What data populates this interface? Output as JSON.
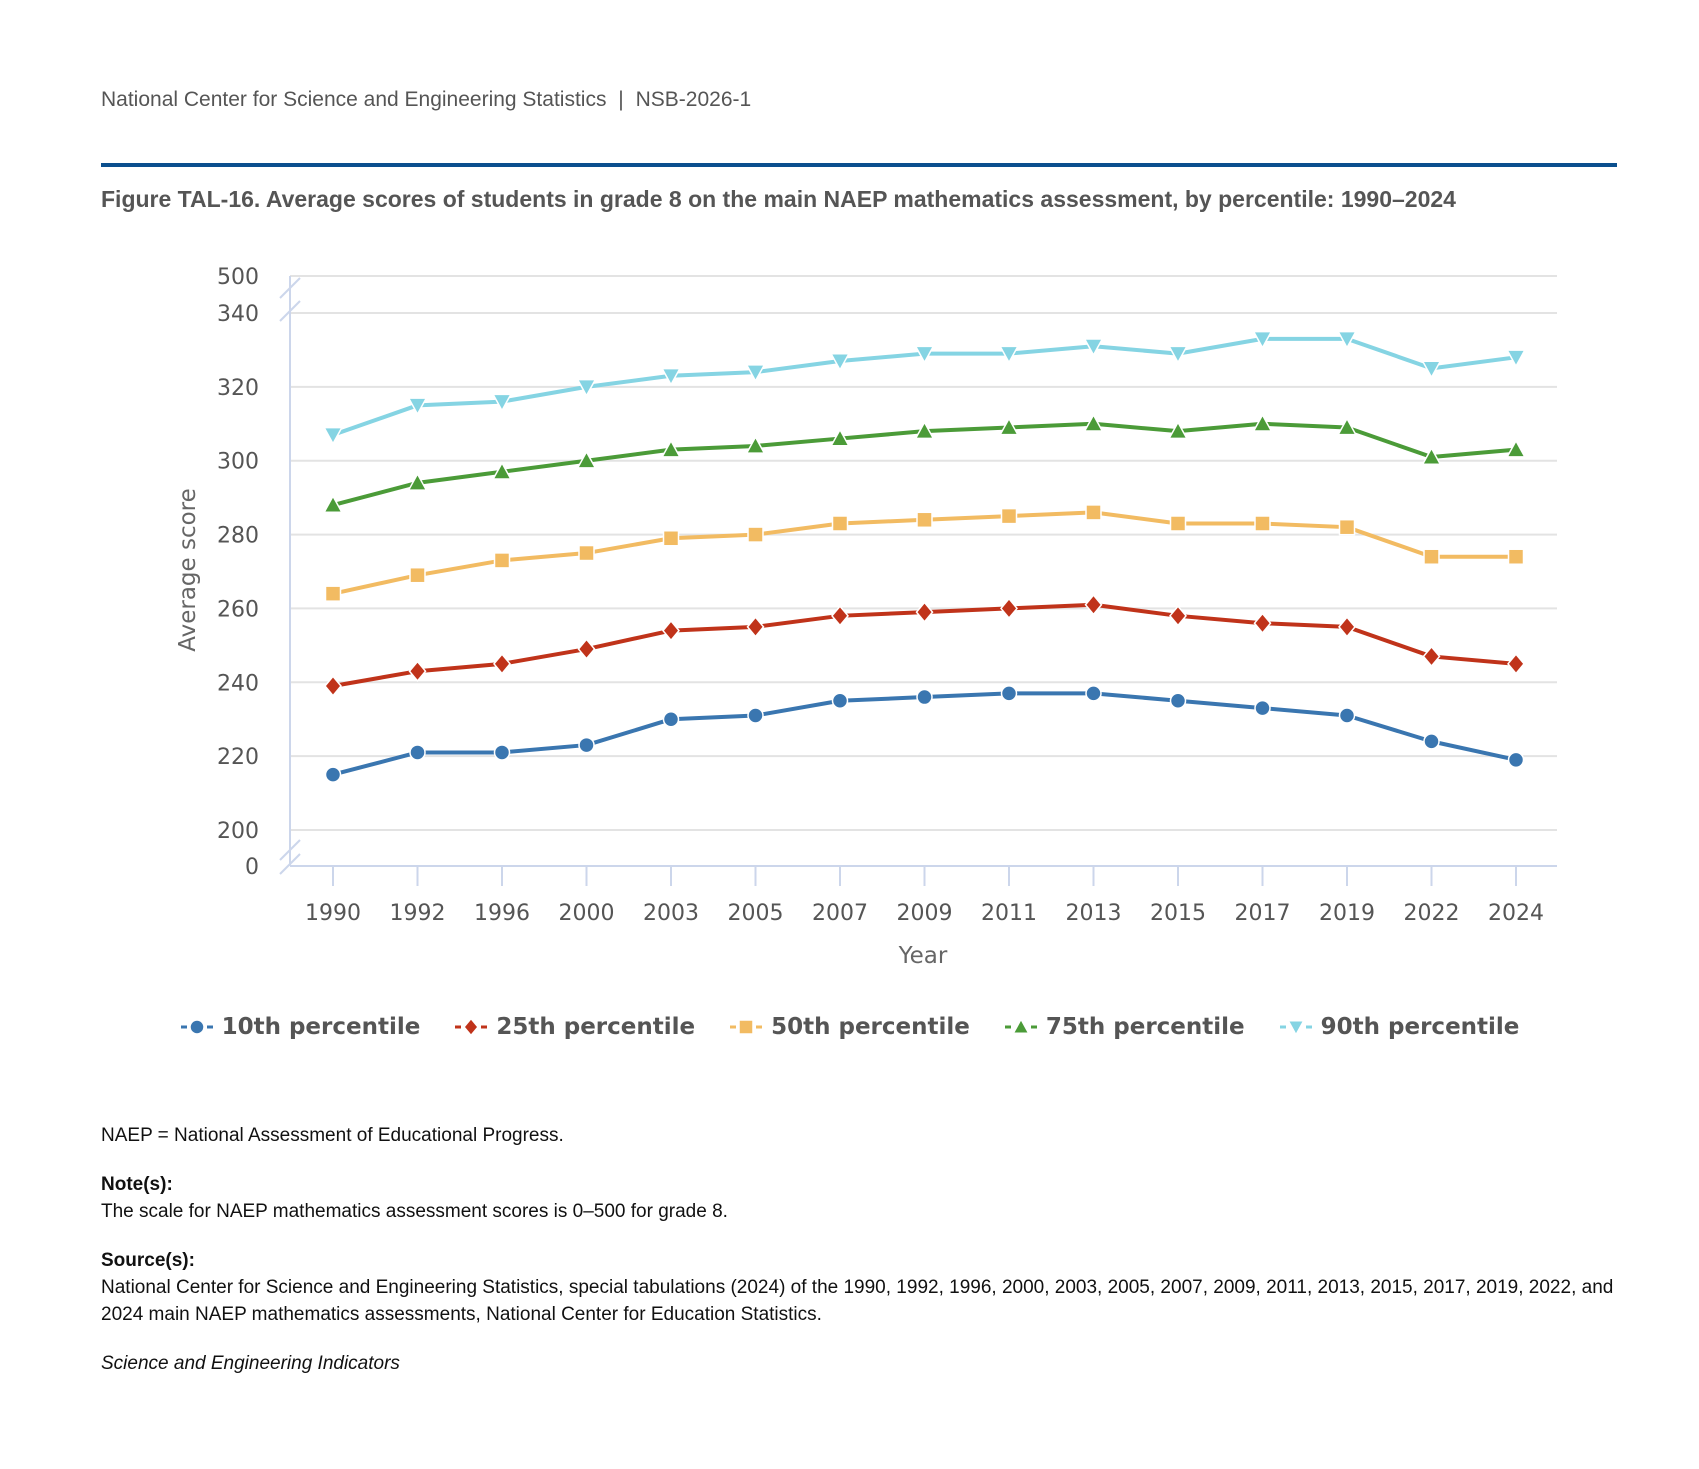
{
  "header": {
    "org": "National Center for Science and Engineering Statistics",
    "separator": "|",
    "report_id": "NSB-2026-1",
    "rule_color": "#0b4f8e"
  },
  "figure": {
    "title": "Figure TAL-16. Average scores of students in grade 8 on the main NAEP mathematics assessment, by percentile: 1990–2024"
  },
  "chart_data": {
    "type": "line",
    "title": "Figure TAL-16. Average scores of students in grade 8 on the main NAEP mathematics assessment, by percentile: 1990–2024",
    "xlabel": "Year",
    "ylabel": "Average score",
    "x": [
      "1990",
      "1992",
      "1996",
      "2000",
      "2003",
      "2005",
      "2007",
      "2009",
      "2011",
      "2013",
      "2015",
      "2017",
      "2019",
      "2022",
      "2024"
    ],
    "ylim": [
      200,
      340
    ],
    "yticks": [
      200,
      220,
      240,
      260,
      280,
      300,
      320,
      340
    ],
    "axis_breaks": {
      "top_label": "500",
      "bottom_label": "0"
    },
    "grid": true,
    "legend_position": "bottom-center",
    "series": [
      {
        "name": "10th percentile",
        "color": "#3a76b0",
        "marker": "circle",
        "values": [
          215,
          221,
          221,
          223,
          230,
          231,
          235,
          236,
          237,
          237,
          235,
          233,
          231,
          224,
          219
        ]
      },
      {
        "name": "25th percentile",
        "color": "#c0331a",
        "marker": "diamond",
        "values": [
          239,
          243,
          245,
          249,
          254,
          255,
          258,
          259,
          260,
          261,
          258,
          256,
          255,
          247,
          245
        ]
      },
      {
        "name": "50th percentile",
        "color": "#f2bb62",
        "marker": "square",
        "values": [
          264,
          269,
          273,
          275,
          279,
          280,
          283,
          284,
          285,
          286,
          283,
          283,
          282,
          274,
          274
        ]
      },
      {
        "name": "75th percentile",
        "color": "#4b9b38",
        "marker": "triangle-up",
        "values": [
          288,
          294,
          297,
          300,
          303,
          304,
          306,
          308,
          309,
          310,
          308,
          310,
          309,
          301,
          303
        ]
      },
      {
        "name": "90th percentile",
        "color": "#85d4e3",
        "marker": "triangle-down",
        "values": [
          307,
          315,
          316,
          320,
          323,
          324,
          327,
          329,
          329,
          331,
          329,
          333,
          333,
          325,
          328
        ]
      }
    ]
  },
  "footnotes": {
    "abbreviation": "NAEP = National Assessment of Educational Progress.",
    "notes_label": "Note(s):",
    "notes_text": "The scale for NAEP mathematics assessment scores is 0–500 for grade 8.",
    "sources_label": "Source(s):",
    "sources_text": "National Center for Science and Engineering Statistics, special tabulations (2024) of the 1990, 1992, 1996, 2000, 2003, 2005, 2007, 2009, 2011, 2013, 2015, 2017, 2019, 2022, and 2024 main NAEP mathematics assessments, National Center for Education Statistics.",
    "publication": "Science and Engineering Indicators"
  }
}
